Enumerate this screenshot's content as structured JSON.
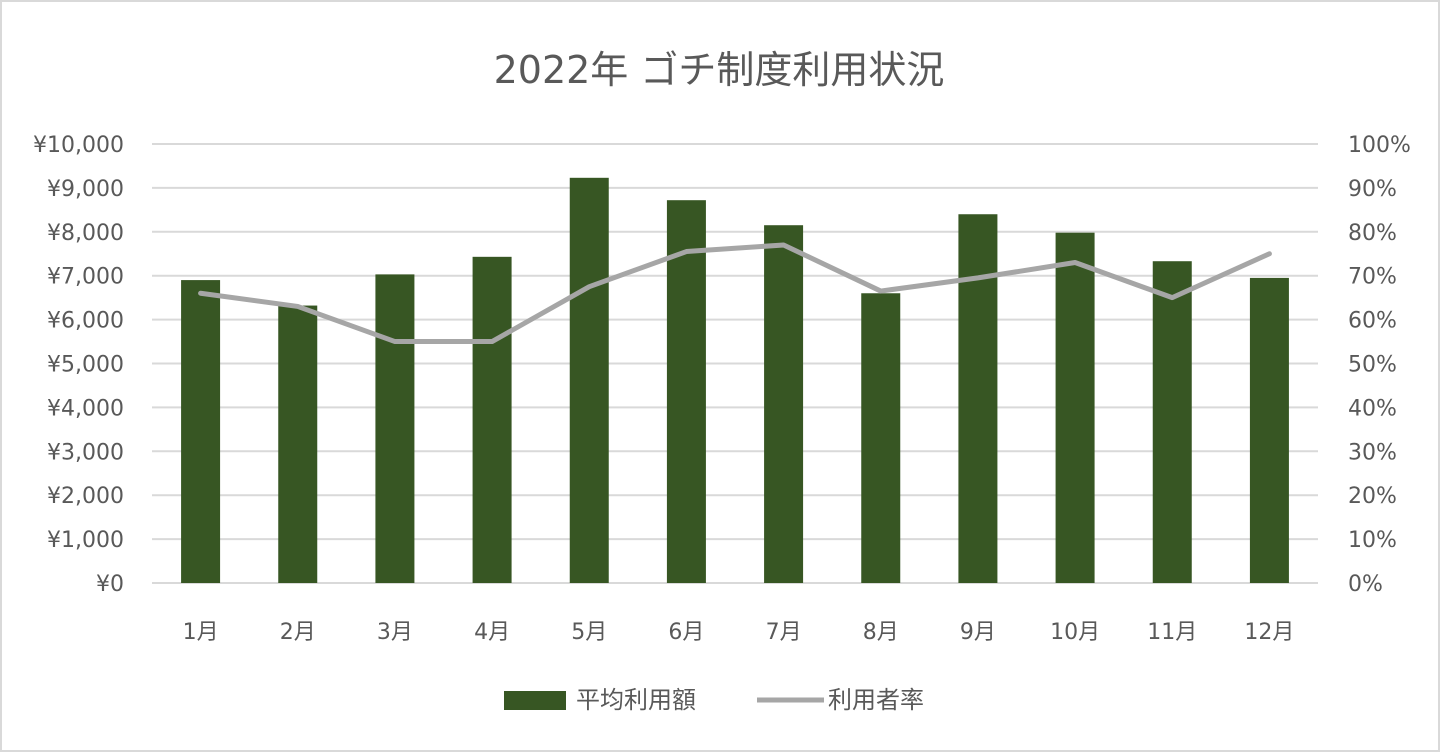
{
  "chart_data": {
    "type": "bar",
    "title": "2022年 ゴチ制度利用状況",
    "categories": [
      "1月",
      "2月",
      "3月",
      "4月",
      "5月",
      "6月",
      "7月",
      "8月",
      "9月",
      "10月",
      "11月",
      "12月"
    ],
    "series": [
      {
        "name": "平均利用額",
        "type": "bar",
        "axis": "left",
        "color": "#375623",
        "values": [
          6900,
          6320,
          7030,
          7430,
          9230,
          8720,
          8150,
          6600,
          8400,
          7980,
          7330,
          6950
        ]
      },
      {
        "name": "利用者率",
        "type": "line",
        "axis": "right",
        "color": "#a6a6a6",
        "values": [
          0.66,
          0.63,
          0.55,
          0.55,
          0.675,
          0.755,
          0.77,
          0.665,
          0.695,
          0.73,
          0.65,
          0.75
        ]
      }
    ],
    "left_axis": {
      "ylim": [
        0,
        10000
      ],
      "ticks": [
        "¥0",
        "¥1,000",
        "¥2,000",
        "¥3,000",
        "¥4,000",
        "¥5,000",
        "¥6,000",
        "¥7,000",
        "¥8,000",
        "¥9,000",
        "¥10,000"
      ]
    },
    "right_axis": {
      "ylim": [
        0,
        1
      ],
      "ticks": [
        "0%",
        "10%",
        "20%",
        "30%",
        "40%",
        "50%",
        "60%",
        "70%",
        "80%",
        "90%",
        "100%"
      ]
    },
    "grid": true,
    "legend_position": "bottom",
    "grid_color": "#d9d9d9",
    "text_color": "#595959"
  }
}
